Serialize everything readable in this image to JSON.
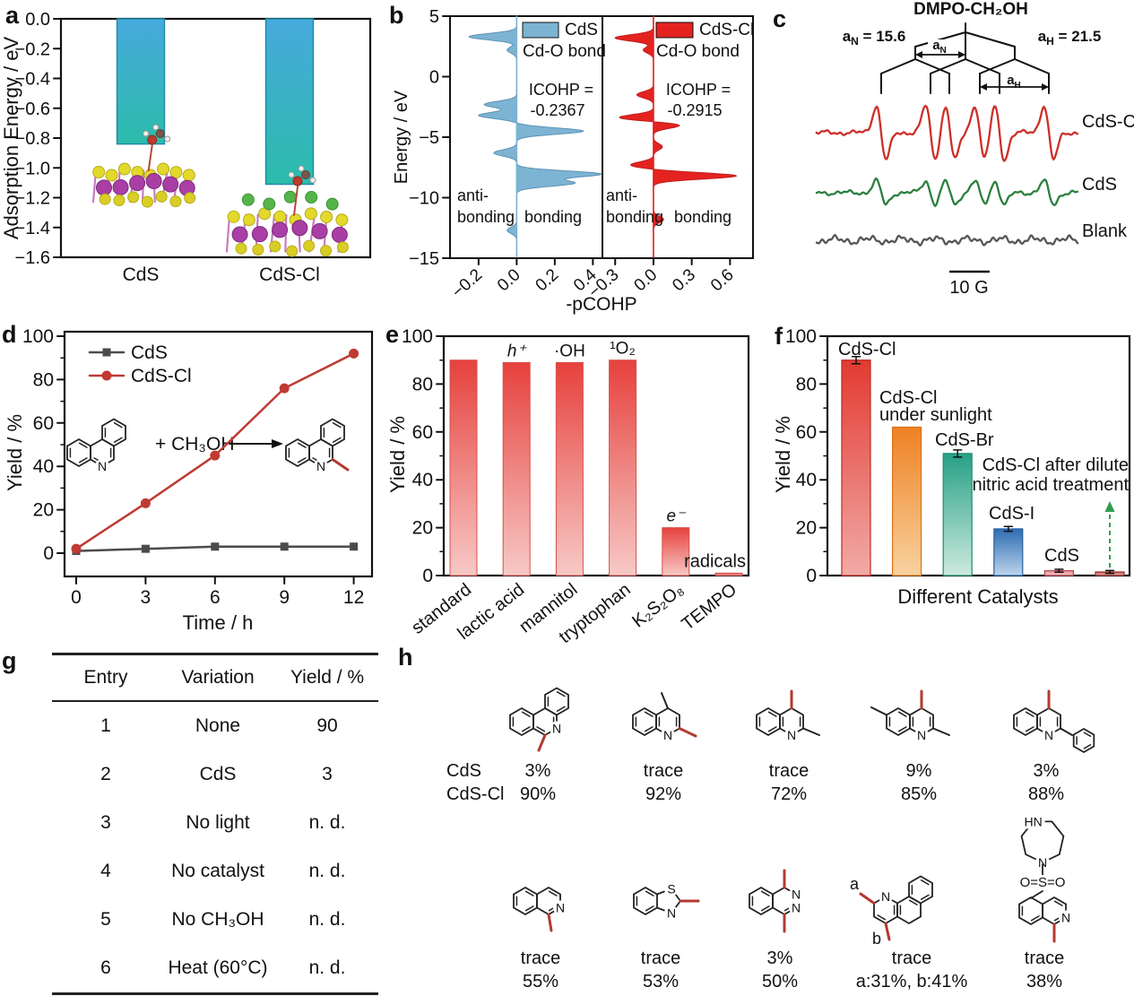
{
  "figure": {
    "background": "#ffffff",
    "panel_labels": [
      "a",
      "b",
      "c",
      "d",
      "e",
      "f",
      "g",
      "h"
    ]
  },
  "chart_data": [
    {
      "id": "a",
      "type": "bar",
      "ylabel": "Adsorption Energy / eV",
      "categories": [
        "CdS",
        "CdS-Cl"
      ],
      "values": [
        -0.84,
        -1.11
      ],
      "ylim": [
        -1.6,
        0
      ],
      "yticks": [
        0,
        -0.2,
        -0.4,
        -0.6,
        -0.8,
        -1,
        -1.2,
        -1.4,
        -1.6
      ],
      "bar_gradient_top": "#47a9dc",
      "bar_gradient_bottom": "#2bbcab",
      "insets": [
        "cds-surface-with-methanol-model",
        "cds-cl-surface-with-methanol-model"
      ]
    },
    {
      "id": "b",
      "type": "area",
      "ylabel": "Energy / eV",
      "xlabel": "-pCOHP",
      "ylim": [
        -15,
        5
      ],
      "yticks": [
        5,
        0,
        -5,
        -10,
        -15
      ],
      "subplots": [
        {
          "legend": "CdS",
          "bond": "Cd-O bond",
          "icohp_line1": "ICOHP =",
          "icohp_line2": "-0.2367",
          "anti": "anti-",
          "bond_left": "bonding",
          "bond_right": "bonding",
          "color": "#7db3d3",
          "edge": "#5c93b5",
          "xlim": [
            -0.35,
            0.45
          ],
          "xticks": [
            -0.2,
            0.0,
            0.2,
            0.4
          ],
          "peaks": [
            [
              3.3,
              -0.25
            ],
            [
              2.2,
              -0.05
            ],
            [
              -2.3,
              -0.17
            ],
            [
              -3.2,
              -0.2
            ],
            [
              -4.5,
              0.35
            ],
            [
              -6.3,
              -0.12
            ],
            [
              -8.05,
              0.44
            ],
            [
              -8.8,
              0.3
            ],
            [
              -12.7,
              -0.05
            ]
          ]
        },
        {
          "legend": "CdS-Cl",
          "bond": "Cd-O bond",
          "icohp_line1": "ICOHP =",
          "icohp_line2": "-0.2915",
          "anti": "anti-",
          "bond_left": "bonding",
          "bond_right": "bonding",
          "color": "#e42320",
          "edge": "#c21d1b",
          "xlim": [
            -0.4,
            0.78
          ],
          "xticks": [
            -0.3,
            0.0,
            0.3,
            0.6
          ],
          "peaks": [
            [
              3.2,
              -0.3
            ],
            [
              2.2,
              -0.08
            ],
            [
              -1.5,
              -0.13
            ],
            [
              -3.4,
              -0.28
            ],
            [
              -4.0,
              0.22
            ],
            [
              -5.8,
              0.07
            ],
            [
              -7.3,
              -0.18
            ],
            [
              -8.2,
              0.65
            ],
            [
              -11.8,
              0.08
            ]
          ]
        }
      ]
    },
    {
      "id": "c",
      "type": "line",
      "title": "DMPO-CH₂OH",
      "couplings": [
        {
          "sym": "a",
          "sub": "N",
          "eq": " = 15.6"
        },
        {
          "sym": "a",
          "sub": "H",
          "eq": " = 21.5"
        }
      ],
      "tree_labels": [
        {
          "sym": "a",
          "sub": "N"
        },
        {
          "sym": "a",
          "sub": "H"
        }
      ],
      "traces": [
        {
          "name": "CdS-Cl",
          "color": "#cc2f28",
          "amp": 30
        },
        {
          "name": "CdS",
          "color": "#2c7f3f",
          "amp": 13
        },
        {
          "name": "Blank",
          "color": "#565656",
          "amp": 0
        }
      ],
      "scale_bar": "10 G"
    },
    {
      "id": "d",
      "type": "line",
      "xlabel": "Time / h",
      "ylabel": "Yield / %",
      "x": [
        0,
        3,
        6,
        9,
        12
      ],
      "xticks": [
        0,
        3,
        6,
        9,
        12
      ],
      "ylim": [
        0,
        100
      ],
      "yticks": [
        0,
        20,
        40,
        60,
        80,
        100
      ],
      "series": [
        {
          "name": "CdS",
          "color": "#4b4b4b",
          "marker": "square",
          "values": [
            1,
            2,
            3,
            3,
            3
          ]
        },
        {
          "name": "CdS-Cl",
          "color": "#bf3a32",
          "marker": "circle",
          "values": [
            2,
            23,
            45,
            76,
            92
          ]
        }
      ],
      "reaction_text": "+ CH₃OH"
    },
    {
      "id": "e",
      "type": "bar",
      "ylabel": "Yield / %",
      "ylim": [
        0,
        100
      ],
      "yticks": [
        0,
        20,
        40,
        60,
        80,
        100
      ],
      "categories": [
        "standard",
        "lactic acid",
        "mannitol",
        "tryptophan",
        "K₂S₂O₈",
        "TEMPO"
      ],
      "values": [
        90,
        89,
        89,
        90,
        20,
        1
      ],
      "annotations": [
        "",
        "h⁺",
        "·OH",
        "¹O₂",
        "e⁻",
        "radicals"
      ],
      "annotation_italic": [
        false,
        true,
        false,
        false,
        true,
        false
      ],
      "bar_gradient_top": "#e6413d",
      "bar_gradient_bottom": "#f7c9c6"
    },
    {
      "id": "f",
      "type": "bar",
      "ylabel": "Yield / %",
      "xlabel": "Different Catalysts",
      "ylim": [
        0,
        100
      ],
      "yticks": [
        0,
        20,
        40,
        60,
        80,
        100
      ],
      "bars": [
        {
          "label_lines": [
            "CdS-Cl"
          ],
          "value": 90,
          "err": 1.5,
          "top": "#e23a31",
          "bottom": "#f2aaa7",
          "edge": "#b92b22"
        },
        {
          "label_lines": [
            "CdS-Cl",
            "under sunlight"
          ],
          "value": 62,
          "err": 0,
          "top": "#ee8122",
          "bottom": "#f8d2a0",
          "edge": "#d9731a"
        },
        {
          "label_lines": [
            "CdS-Br"
          ],
          "value": 51,
          "err": 1.5,
          "top": "#27a086",
          "bottom": "#cdeade",
          "edge": "#1e8d75"
        },
        {
          "label_lines": [
            "CdS-I"
          ],
          "value": 19.5,
          "err": 1,
          "top": "#2e6cb2",
          "bottom": "#bdd4ec",
          "edge": "#27619e"
        },
        {
          "label_lines": [
            "CdS"
          ],
          "value": 2,
          "err": 0.6,
          "top": "#ec9ba0",
          "bottom": "#f3b9bd",
          "edge": "#b2474e"
        },
        {
          "label_lines": [],
          "value": 1.5,
          "err": 0.6,
          "top": "#cf564f",
          "bottom": "#eeb0ad",
          "edge": "#8f2f2a"
        }
      ],
      "annotation_lines": [
        "CdS-Cl after dilute",
        "nitric acid treatment"
      ],
      "arrow_color": "#2f9e50"
    },
    {
      "id": "g",
      "type": "table",
      "headers": [
        "Entry",
        "Variation",
        "Yield / %"
      ],
      "rows": [
        [
          "1",
          "None",
          "90"
        ],
        [
          "2",
          "CdS",
          "3"
        ],
        [
          "3",
          "No light",
          "n. d."
        ],
        [
          "4",
          "No catalyst",
          "n. d."
        ],
        [
          "5",
          "No CH₃OH",
          "n. d."
        ],
        [
          "6",
          "Heat (60°C)",
          "n. d."
        ]
      ]
    },
    {
      "id": "h",
      "type": "table",
      "catalyst_labels": [
        "CdS",
        "CdS-Cl"
      ],
      "highlight_color": "#b23a31",
      "molecules": [
        {
          "name": "methyl-phenanthridine",
          "cds": "3%",
          "cdscl": "90%",
          "atoms": [
            "N"
          ]
        },
        {
          "name": "methyl-4-methylquinoline",
          "cds": "trace",
          "cdscl": "92%",
          "atoms": [
            "N"
          ]
        },
        {
          "name": "methyl-2-methylquinoline",
          "cds": "trace",
          "cdscl": "72%",
          "atoms": [
            "N"
          ]
        },
        {
          "name": "methyl-2,6-dimethylquinoline",
          "cds": "9%",
          "cdscl": "85%",
          "atoms": [
            "N"
          ]
        },
        {
          "name": "methyl-2-phenylquinoline",
          "cds": "3%",
          "cdscl": "88%",
          "atoms": [
            "N"
          ]
        },
        {
          "name": "methyl-isoquinoline",
          "cds": "trace",
          "cdscl": "55%",
          "atoms": [
            "N"
          ]
        },
        {
          "name": "methyl-benzothiazole",
          "cds": "trace",
          "cdscl": "53%",
          "atoms": [
            "S",
            "N"
          ]
        },
        {
          "name": "dimethyl-phthalazine",
          "cds": "3%",
          "cdscl": "50%",
          "atoms": [
            "N",
            "N"
          ]
        },
        {
          "name": "methyl-benzoquinoline",
          "cds": "trace",
          "cdscl": "a:31%, b:41%",
          "atoms": [
            "N"
          ],
          "site_labels": [
            "a",
            "b"
          ]
        },
        {
          "name": "methyl-sulfonyl-isoquinoline",
          "cds": "trace",
          "cdscl": "38%",
          "atoms": [
            "HN",
            "N",
            "O=S=O",
            "N"
          ]
        }
      ]
    }
  ]
}
